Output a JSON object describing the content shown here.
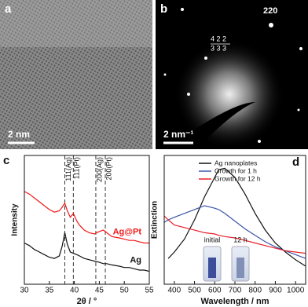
{
  "images": [
    {
      "panel": "a",
      "scale_bar": "2 nm"
    },
    {
      "panel": "b",
      "scale_bar": "2 nm⁻¹",
      "spot_label": "220",
      "zone_numerators": "4 2 2",
      "zone_denominators": "3 3 3"
    }
  ],
  "chart_data": [
    {
      "type": "line",
      "panel": "c",
      "x_label": "2θ / °",
      "y_label": "Intensity",
      "xlim": [
        30,
        55
      ],
      "xticks": [
        30,
        35,
        40,
        45,
        50,
        55
      ],
      "ylim": [
        0,
        10
      ],
      "x": [
        30,
        31,
        32,
        33,
        34,
        35,
        36,
        37,
        37.6,
        38.1,
        38.6,
        39.2,
        39.8,
        40.5,
        41,
        42,
        43,
        44,
        45,
        45.8,
        46.5,
        47.5,
        49,
        50,
        51,
        52,
        53,
        54,
        55
      ],
      "series": [
        {
          "name": "Ag@Pt",
          "color": "#f01818",
          "values": [
            7.2,
            7.0,
            6.7,
            6.4,
            6.1,
            5.8,
            5.6,
            5.7,
            6.0,
            6.3,
            5.7,
            5.2,
            5.5,
            4.9,
            4.6,
            4.2,
            4.0,
            3.9,
            4.1,
            4.2,
            4.0,
            3.7,
            3.6,
            3.5,
            3.4,
            3.4,
            3.3,
            3.2,
            3.2
          ]
        },
        {
          "name": "Ag",
          "color": "#111111",
          "values": [
            3.2,
            3.0,
            2.7,
            2.5,
            2.3,
            2.1,
            2.0,
            2.2,
            3.0,
            4.0,
            3.1,
            2.5,
            2.4,
            2.3,
            2.2,
            2.0,
            1.9,
            1.8,
            1.7,
            1.6,
            1.6,
            1.5,
            1.4,
            1.3,
            1.3,
            1.2,
            1.1,
            1.1,
            1.0
          ]
        }
      ],
      "reference_lines": [
        {
          "value": 38.1,
          "label": "111(Ag)"
        },
        {
          "value": 39.8,
          "label": "111(Pt)"
        },
        {
          "value": 44.3,
          "label": "200(Ag)"
        },
        {
          "value": 46.2,
          "label": "200(Pt)"
        }
      ]
    },
    {
      "type": "line",
      "panel": "d",
      "x_label": "Wavelength / nm",
      "y_label": "Extinction",
      "xlim": [
        350,
        1050
      ],
      "xticks": [
        400,
        500,
        600,
        700,
        800,
        900,
        1000
      ],
      "ylim": [
        0,
        10
      ],
      "x": [
        350,
        370,
        400,
        450,
        500,
        550,
        600,
        620,
        650,
        700,
        750,
        800,
        850,
        900,
        950,
        1000,
        1050
      ],
      "series": [
        {
          "name": "Ag nanoplates",
          "color": "#111111",
          "values": [
            null,
            2.0,
            2.5,
            3.5,
            5.0,
            6.8,
            8.3,
            8.9,
            9.0,
            8.3,
            7.0,
            5.5,
            4.2,
            3.2,
            2.5,
            1.9,
            1.4
          ]
        },
        {
          "name": "Growth for 1 h",
          "color": "#3a55a8",
          "values": [
            4.8,
            5.0,
            5.2,
            5.5,
            5.8,
            6.1,
            5.9,
            5.8,
            5.5,
            4.9,
            4.3,
            3.8,
            3.3,
            2.9,
            2.6,
            2.3,
            2.0
          ]
        },
        {
          "name": "Growth for 12 h",
          "color": "#e8202a",
          "values": [
            5.3,
            5.0,
            4.6,
            4.4,
            4.2,
            4.0,
            3.9,
            3.8,
            3.7,
            3.6,
            3.4,
            3.2,
            3.0,
            2.8,
            2.6,
            2.5,
            2.4
          ]
        }
      ],
      "inset_labels": [
        "initial",
        "12 h"
      ]
    }
  ]
}
